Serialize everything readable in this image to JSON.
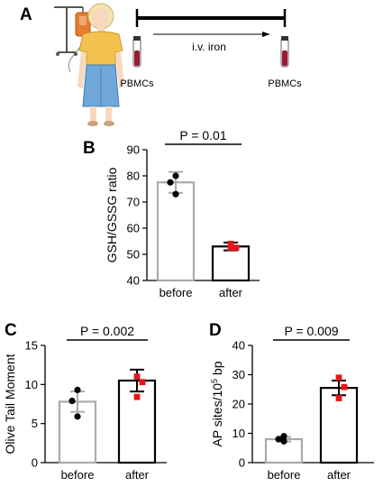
{
  "panel_a": {
    "letter": "A",
    "label_left": "PBMCs",
    "label_right": "PBMCs",
    "timeline_label": "i.v. iron"
  },
  "colors": {
    "before_bar": "#aaaaaa",
    "after_bar": "#000000",
    "before_point": "#000000",
    "after_point": "#e8141b",
    "tube_red": "#9b1b30",
    "infusion_orange": "#e87a2c",
    "skirt_blue": "#6fa8d8",
    "shirt_yellow": "#f2c14e",
    "hair": "#f4e3b0",
    "skin": "#f7d8bf"
  },
  "chart_data": [
    {
      "id": "B",
      "type": "bar",
      "letter": "B",
      "categories": [
        "before",
        "after"
      ],
      "values": [
        77.5,
        53
      ],
      "errors": [
        4,
        1.5
      ],
      "points": [
        [
          80,
          77.5,
          73
        ],
        [
          54,
          52.5,
          52.5
        ]
      ],
      "ylabel": "GSH/GSSG ratio",
      "ylim": [
        40,
        90
      ],
      "yticks": [
        40,
        50,
        60,
        70,
        80,
        90
      ],
      "annotation": "P = 0.01"
    },
    {
      "id": "C",
      "type": "bar",
      "letter": "C",
      "categories": [
        "before",
        "after"
      ],
      "values": [
        7.8,
        10.5
      ],
      "errors": [
        1.3,
        1.4
      ],
      "points": [
        [
          9.3,
          7.9,
          5.9
        ],
        [
          11.0,
          10.3,
          8.4
        ]
      ],
      "ylabel": "Olive Tail Moment",
      "ylim": [
        0,
        15
      ],
      "yticks": [
        0,
        5,
        10,
        15
      ],
      "annotation": "P = 0.002"
    },
    {
      "id": "D",
      "type": "bar",
      "letter": "D",
      "categories": [
        "before",
        "after"
      ],
      "values": [
        8,
        25.5
      ],
      "errors": [
        0.8,
        2.5
      ],
      "points": [
        [
          9,
          8,
          7.3
        ],
        [
          29,
          25.8,
          22
        ]
      ],
      "ylabel": "AP sites/10",
      "ylabel_sup": "5",
      "ylabel_suffix": " bp",
      "ylim": [
        0,
        40
      ],
      "yticks": [
        0,
        10,
        20,
        30,
        40
      ],
      "annotation": "P = 0.009"
    }
  ]
}
